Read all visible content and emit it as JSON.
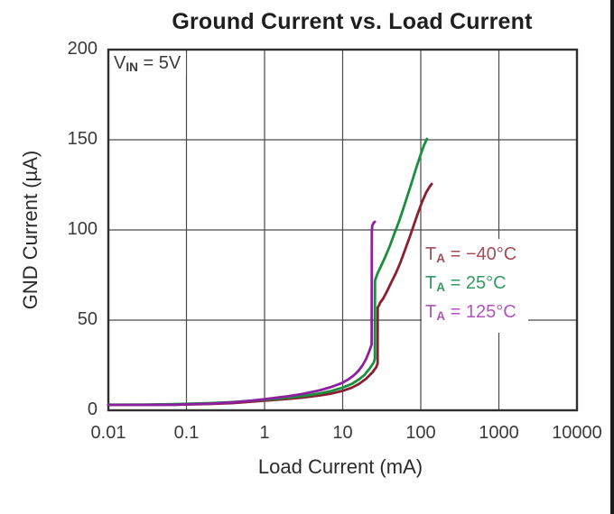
{
  "chart_data": {
    "type": "line",
    "title": "Ground Current vs. Load Current",
    "xlabel": "Load Current (mA)",
    "ylabel": "GND Current (µA)",
    "x_scale": "log",
    "xlim": [
      0.01,
      10000
    ],
    "ylim": [
      0,
      200
    ],
    "x_tick_values": [
      0.01,
      0.1,
      1,
      10,
      100,
      1000,
      10000
    ],
    "x_tick_labels": [
      "0.01",
      "0.1",
      "1",
      "10",
      "100",
      "1000",
      "10000"
    ],
    "y_tick_values": [
      0,
      50,
      100,
      150,
      200
    ],
    "y_tick_labels": [
      "0",
      "50",
      "100",
      "150",
      "200"
    ],
    "grid": true,
    "legend_position": "inside-right",
    "annotation": {
      "prefix": "V",
      "sub": "IN",
      "rest": " = 5V"
    },
    "frame_color": "#2f2f2f",
    "grid_color": "#4a4a4a",
    "series": [
      {
        "name": "TA = −40°C",
        "label_prefix": "T",
        "label_sub": "A",
        "label_rest": " = −40°C",
        "color": "#8a1f31",
        "label_color": "#a34b58",
        "points": [
          [
            0.01,
            3
          ],
          [
            0.03,
            3
          ],
          [
            0.07,
            3.1
          ],
          [
            0.1,
            3.2
          ],
          [
            0.2,
            3.5
          ],
          [
            0.4,
            4
          ],
          [
            0.7,
            4.8
          ],
          [
            1,
            5.3
          ],
          [
            2,
            6.3
          ],
          [
            3,
            7
          ],
          [
            5,
            8.2
          ],
          [
            7,
            9.2
          ],
          [
            10,
            10.8
          ],
          [
            13,
            12.5
          ],
          [
            16,
            14.5
          ],
          [
            20,
            17.5
          ],
          [
            24,
            21
          ],
          [
            27,
            24
          ],
          [
            28,
            26
          ],
          [
            28.1,
            57
          ],
          [
            29.5,
            58.5
          ],
          [
            30,
            59.5
          ],
          [
            33,
            62
          ],
          [
            37,
            66
          ],
          [
            42,
            71
          ],
          [
            48,
            76
          ],
          [
            55,
            82
          ],
          [
            63,
            89
          ],
          [
            72,
            96
          ],
          [
            82,
            103
          ],
          [
            93,
            110
          ],
          [
            105,
            116
          ],
          [
            118,
            121
          ],
          [
            130,
            124
          ],
          [
            138,
            125.5
          ]
        ]
      },
      {
        "name": "TA = 25°C",
        "label_prefix": "T",
        "label_sub": "A",
        "label_rest": " = 25°C",
        "color": "#1a8f3e",
        "label_color": "#339966",
        "points": [
          [
            0.01,
            3.1
          ],
          [
            0.03,
            3.2
          ],
          [
            0.07,
            3.4
          ],
          [
            0.1,
            3.6
          ],
          [
            0.2,
            4
          ],
          [
            0.4,
            4.6
          ],
          [
            0.7,
            5.3
          ],
          [
            1,
            5.9
          ],
          [
            2,
            7
          ],
          [
            3,
            7.8
          ],
          [
            5,
            9.3
          ],
          [
            7,
            10.6
          ],
          [
            10,
            12.6
          ],
          [
            13,
            14.6
          ],
          [
            16,
            17
          ],
          [
            19,
            19.6
          ],
          [
            22,
            23
          ],
          [
            25,
            26.5
          ],
          [
            25.8,
            28.5
          ],
          [
            25.9,
            72
          ],
          [
            28,
            76
          ],
          [
            31,
            80
          ],
          [
            35,
            85
          ],
          [
            40,
            91
          ],
          [
            46,
            98
          ],
          [
            53,
            105
          ],
          [
            61,
            113
          ],
          [
            70,
            121
          ],
          [
            80,
            129
          ],
          [
            90,
            136
          ],
          [
            100,
            142
          ],
          [
            110,
            147
          ],
          [
            120,
            150.5
          ]
        ]
      },
      {
        "name": "TA = 125°C",
        "label_prefix": "T",
        "label_sub": "A",
        "label_rest": " = 125°C",
        "color": "#8e1f9e",
        "label_color": "#b153bd",
        "points": [
          [
            0.01,
            3
          ],
          [
            0.03,
            3
          ],
          [
            0.07,
            3.1
          ],
          [
            0.1,
            3.3
          ],
          [
            0.2,
            3.7
          ],
          [
            0.4,
            4.4
          ],
          [
            0.7,
            5.4
          ],
          [
            1,
            6.2
          ],
          [
            2,
            7.8
          ],
          [
            3,
            9
          ],
          [
            5,
            11
          ],
          [
            7,
            12.8
          ],
          [
            10,
            15.3
          ],
          [
            12,
            17.3
          ],
          [
            14,
            19.5
          ],
          [
            16,
            22
          ],
          [
            18,
            25
          ],
          [
            20,
            28.5
          ],
          [
            22,
            33
          ],
          [
            23.5,
            36.5
          ],
          [
            23.6,
            100
          ],
          [
            24,
            102.5
          ],
          [
            25,
            104
          ],
          [
            25.8,
            104.5
          ]
        ]
      }
    ]
  }
}
